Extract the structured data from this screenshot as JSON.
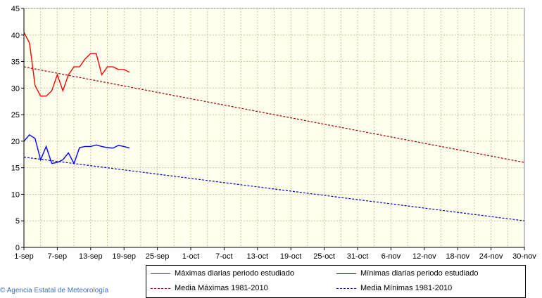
{
  "chart_data": {
    "type": "line",
    "y_ticks": [
      0,
      5,
      10,
      15,
      20,
      25,
      30,
      35,
      40,
      45
    ],
    "ylim": [
      0,
      45
    ],
    "x_tick_labels": [
      "1-sep",
      "7-sep",
      "13-sep",
      "19-sep",
      "25-sep",
      "1-oct",
      "7-oct",
      "13-oct",
      "19-oct",
      "25-oct",
      "31-oct",
      "6-nov",
      "12-nov",
      "18-nov",
      "24-nov",
      "30-nov"
    ],
    "x_range_days": [
      0,
      90
    ],
    "grid": true,
    "legend_position": "bottom-right",
    "series": [
      {
        "name": "Máximas diarias periodo estudiado",
        "color": "#ff0000",
        "dash": false,
        "x": [
          0,
          1,
          2,
          3,
          4,
          5,
          6,
          7,
          8,
          9,
          10,
          11,
          12,
          13,
          14,
          15,
          16,
          17,
          18,
          19
        ],
        "values": [
          40.5,
          38.5,
          30.5,
          28.5,
          28.5,
          29.5,
          32.5,
          29.5,
          32.5,
          34.0,
          34.0,
          35.5,
          36.5,
          36.5,
          32.5,
          34.0,
          34.0,
          33.5,
          33.5,
          33.0
        ]
      },
      {
        "name": "Mínimas diarias periodo estudiado",
        "color": "#0000ff",
        "dash": false,
        "x": [
          0,
          1,
          2,
          3,
          4,
          5,
          6,
          7,
          8,
          9,
          10,
          11,
          12,
          13,
          14,
          15,
          16,
          17,
          18,
          19
        ],
        "values": [
          20.0,
          21.2,
          20.5,
          16.5,
          19.0,
          15.8,
          16.0,
          16.5,
          17.8,
          15.8,
          18.8,
          19.0,
          19.0,
          19.3,
          19.0,
          18.8,
          18.7,
          19.2,
          19.0,
          18.7
        ]
      },
      {
        "name": "Media Máximas 1981-2010",
        "color": "#a00000",
        "dash": true,
        "x": [
          0,
          90
        ],
        "values": [
          34.0,
          16.0
        ]
      },
      {
        "name": "Media Mínimas 1981-2010",
        "color": "#0000c0",
        "dash": true,
        "x": [
          0,
          90
        ],
        "values": [
          17.0,
          5.0
        ]
      }
    ]
  },
  "legend": {
    "item1": "Máximas diarias periodo estudiado",
    "item2": "Mínimas diarias periodo estudiado",
    "item3": "Media Máximas 1981-2010",
    "item4": "Media Mínimas 1981-2010"
  },
  "credit": "© Agencia Estatal de Meteorología"
}
